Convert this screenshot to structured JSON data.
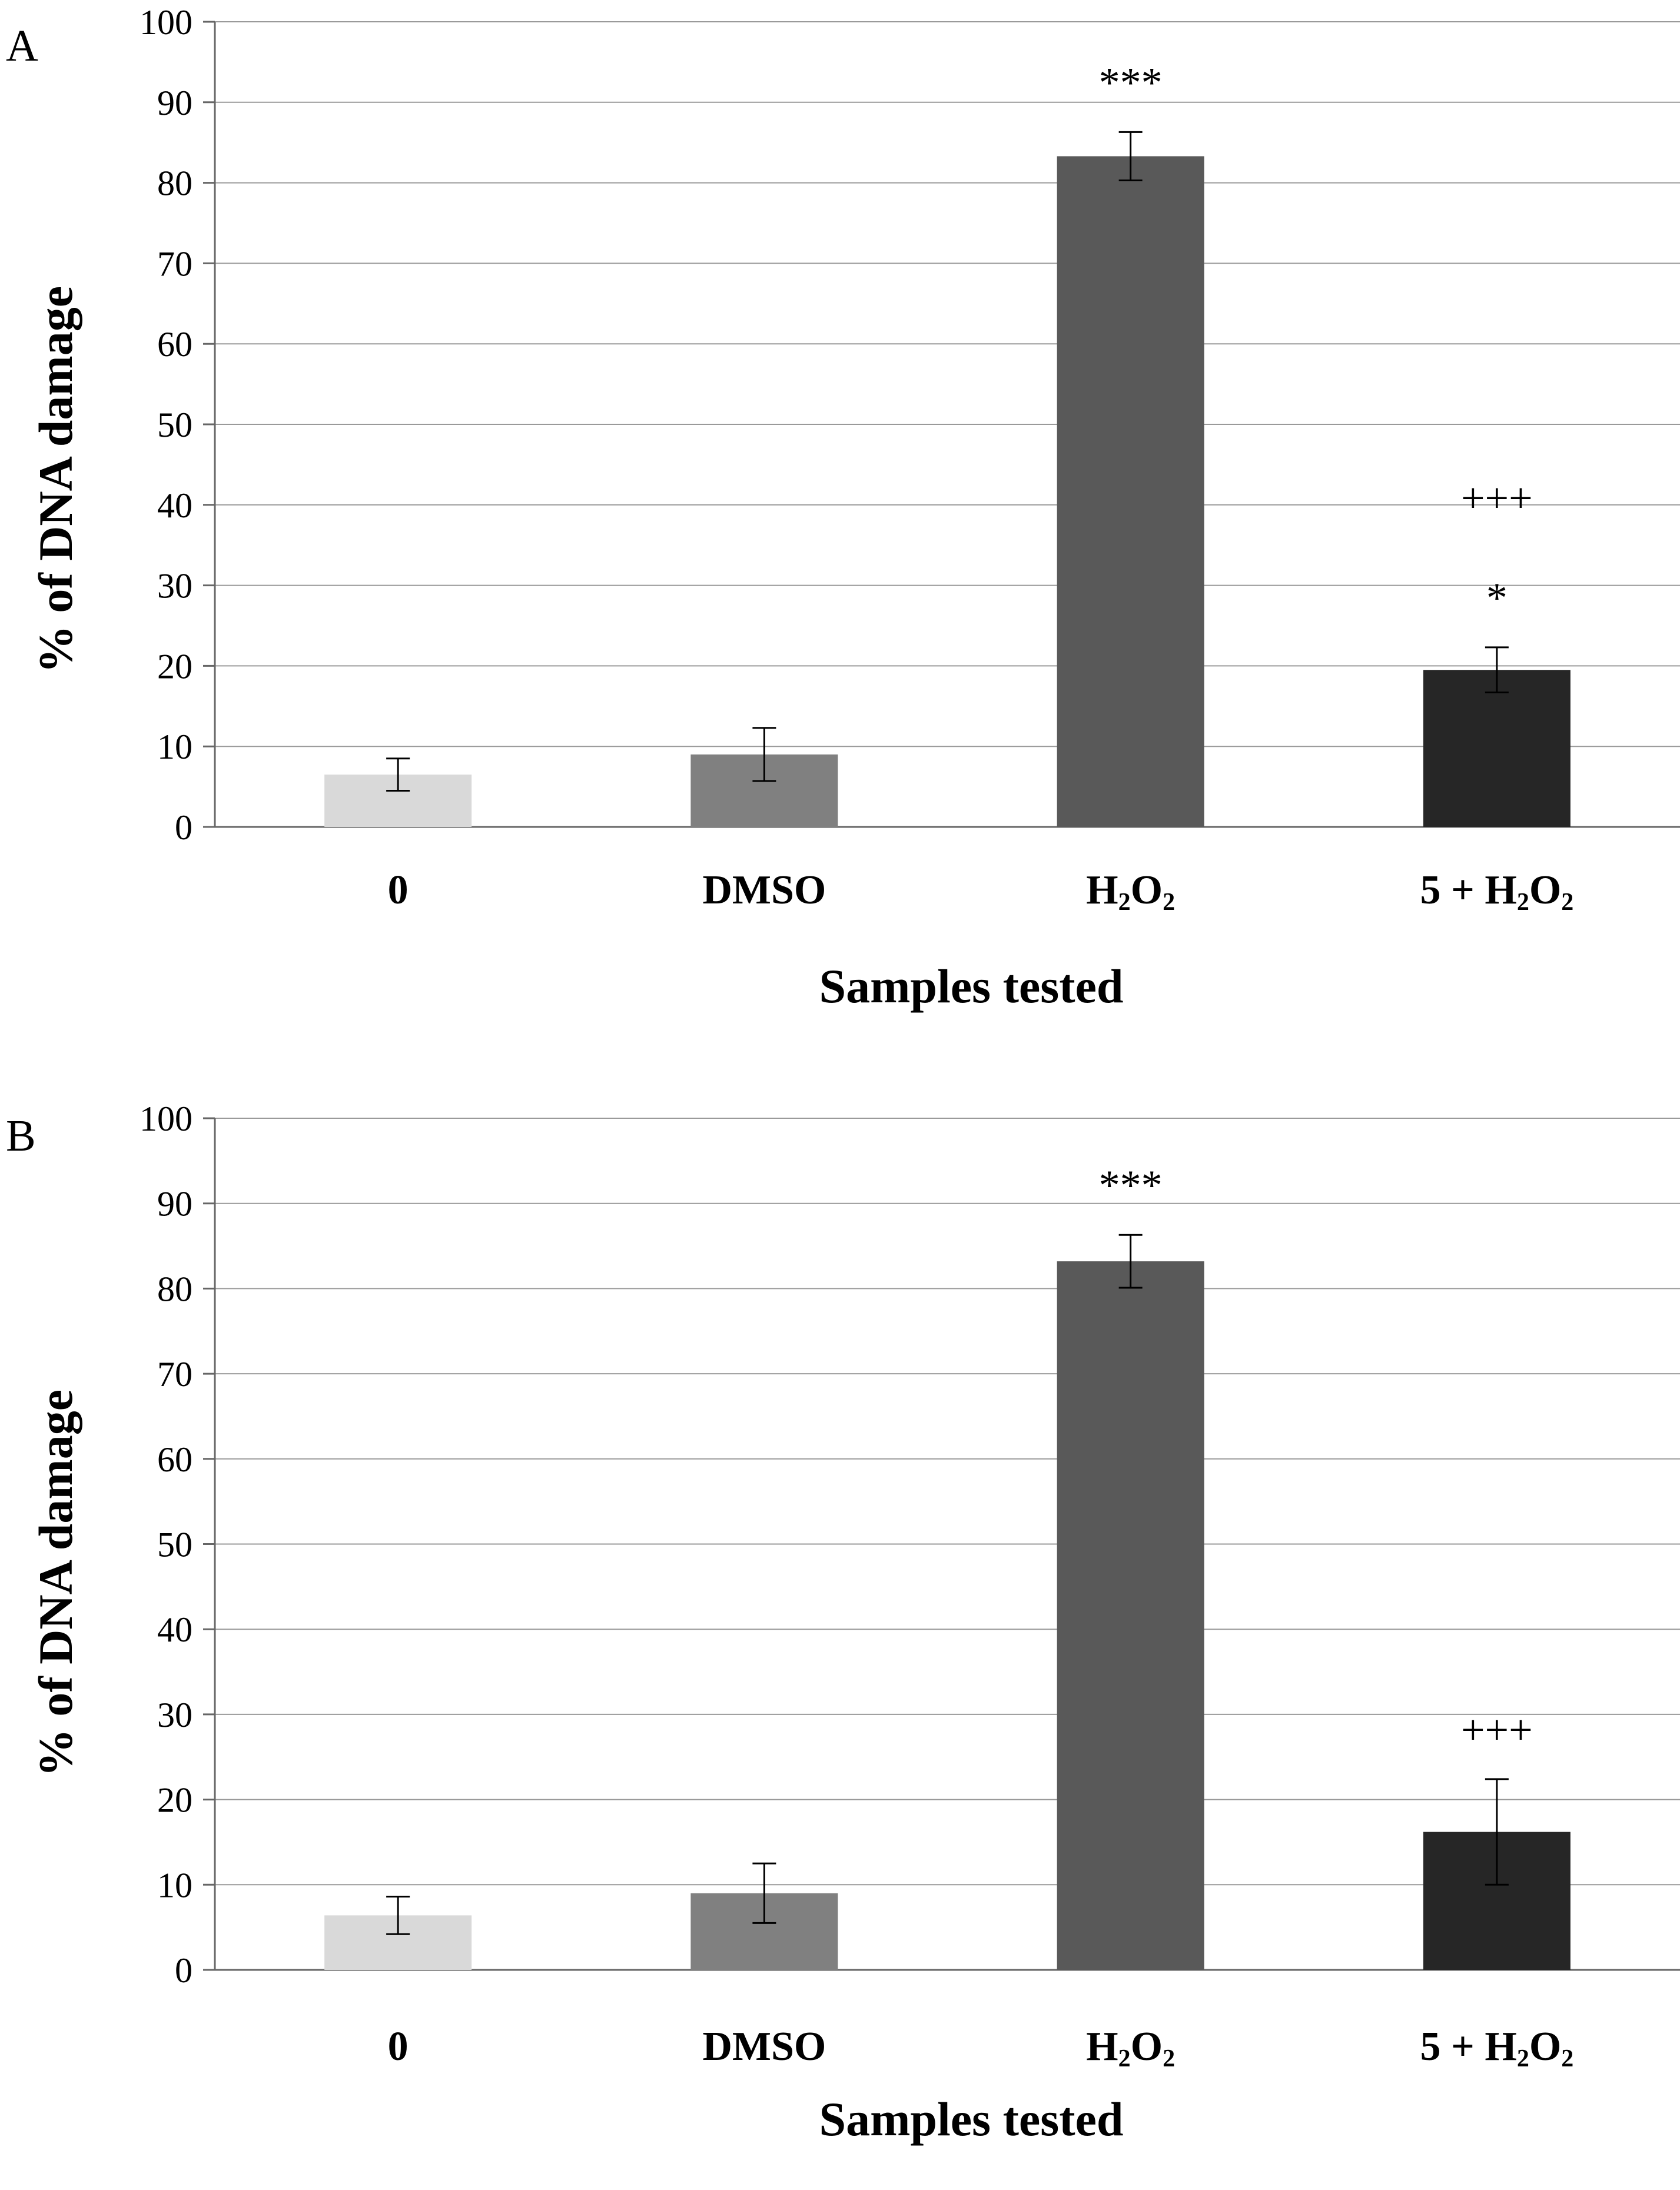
{
  "chart_data": [
    {
      "type": "bar",
      "panel_label": "A",
      "title": "",
      "xlabel": "Samples tested",
      "ylabel": "% of DNA damage",
      "ylim": [
        0,
        100
      ],
      "yticks": [
        "0",
        "10",
        "20",
        "30",
        "40",
        "50",
        "60",
        "70",
        "80",
        "90",
        "100"
      ],
      "grid": true,
      "categories": [
        {
          "label": "0",
          "base": "",
          "mid": "",
          "end": ""
        },
        {
          "label": "DMSO",
          "base": "",
          "mid": "",
          "end": ""
        },
        {
          "label": "H2O2",
          "base": "H",
          "mid": "O",
          "end": ""
        },
        {
          "label": "5 + H2O2",
          "base": "5 + H",
          "mid": "O",
          "end": ""
        }
      ],
      "values": [
        6.5,
        9.0,
        83.3,
        19.5
      ],
      "errors": [
        2.0,
        3.3,
        3.0,
        2.8
      ],
      "colors": [
        "#d9d9d9",
        "#808080",
        "#595959",
        "#262626"
      ],
      "annotations": [
        {
          "category": 2,
          "texts": [
            "***"
          ]
        },
        {
          "category": 3,
          "texts": [
            "+++",
            "*"
          ]
        }
      ]
    },
    {
      "type": "bar",
      "panel_label": "B",
      "title": "",
      "xlabel": "Samples tested",
      "ylabel": "% of DNA damage",
      "ylim": [
        0,
        100
      ],
      "yticks": [
        "0",
        "10",
        "20",
        "30",
        "40",
        "50",
        "60",
        "70",
        "80",
        "90",
        "100"
      ],
      "grid": true,
      "categories": [
        {
          "label": "0",
          "base": "",
          "mid": "",
          "end": ""
        },
        {
          "label": "DMSO",
          "base": "",
          "mid": "",
          "end": ""
        },
        {
          "label": "H2O2",
          "base": "H",
          "mid": "O",
          "end": ""
        },
        {
          "label": "5 + H2O2",
          "base": "5 + H",
          "mid": "O",
          "end": ""
        }
      ],
      "values": [
        6.4,
        9.0,
        83.2,
        16.2
      ],
      "errors": [
        2.2,
        3.5,
        3.1,
        6.2
      ],
      "colors": [
        "#d9d9d9",
        "#808080",
        "#595959",
        "#262626"
      ],
      "annotations": [
        {
          "category": 2,
          "texts": [
            "***"
          ]
        },
        {
          "category": 3,
          "texts": [
            "+++"
          ]
        }
      ]
    }
  ]
}
